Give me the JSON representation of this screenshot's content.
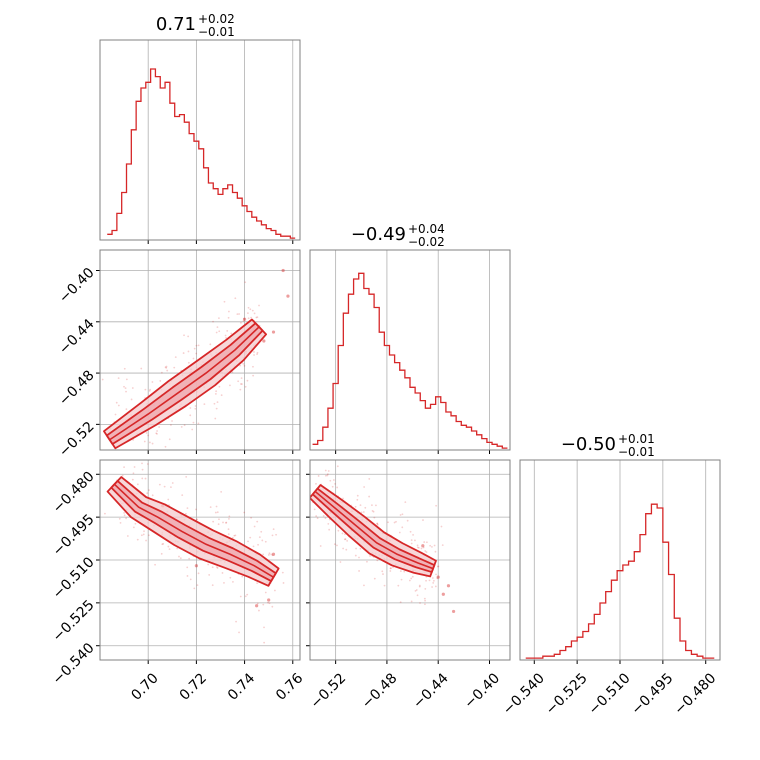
{
  "chart_data": {
    "type": "corner",
    "color": "#d62728",
    "fill_color": "#f4c9cc",
    "grid": true,
    "parameters": [
      {
        "title": {
          "median": "0.71",
          "plus": "+0.02",
          "minus": "−0.01"
        },
        "range": [
          0.68,
          0.763
        ],
        "ticks": [
          0.7,
          0.72,
          0.74,
          0.76
        ],
        "tick_labels": [
          "0.70",
          "0.72",
          "0.74",
          "0.76"
        ],
        "hist_x": [
          0.684,
          0.686,
          0.688,
          0.69,
          0.692,
          0.694,
          0.696,
          0.698,
          0.7,
          0.702,
          0.704,
          0.706,
          0.708,
          0.71,
          0.712,
          0.714,
          0.716,
          0.718,
          0.72,
          0.722,
          0.724,
          0.726,
          0.728,
          0.73,
          0.732,
          0.734,
          0.736,
          0.738,
          0.74,
          0.742,
          0.744,
          0.746,
          0.748,
          0.75,
          0.752,
          0.754,
          0.756,
          0.758,
          0.76
        ],
        "hist_y": [
          0.03,
          0.05,
          0.14,
          0.25,
          0.4,
          0.58,
          0.73,
          0.8,
          0.83,
          0.9,
          0.86,
          0.8,
          0.83,
          0.72,
          0.65,
          0.66,
          0.62,
          0.56,
          0.52,
          0.48,
          0.38,
          0.3,
          0.27,
          0.24,
          0.27,
          0.29,
          0.25,
          0.22,
          0.18,
          0.15,
          0.12,
          0.1,
          0.08,
          0.06,
          0.05,
          0.03,
          0.02,
          0.02,
          0.01
        ]
      },
      {
        "title": {
          "median": "−0.49",
          "plus": "+0.04",
          "minus": "−0.02"
        },
        "range": [
          -0.54,
          -0.384
        ],
        "ticks": [
          -0.52,
          -0.48,
          -0.44,
          -0.4
        ],
        "tick_labels": [
          "−0.52",
          "−0.48",
          "−0.44",
          "−0.40"
        ],
        "hist_x": [
          -0.536,
          -0.532,
          -0.528,
          -0.524,
          -0.52,
          -0.516,
          -0.512,
          -0.508,
          -0.504,
          -0.5,
          -0.496,
          -0.492,
          -0.488,
          -0.484,
          -0.48,
          -0.476,
          -0.472,
          -0.468,
          -0.464,
          -0.46,
          -0.456,
          -0.452,
          -0.448,
          -0.444,
          -0.44,
          -0.436,
          -0.432,
          -0.428,
          -0.424,
          -0.42,
          -0.416,
          -0.412,
          -0.408,
          -0.404,
          -0.4,
          -0.396,
          -0.392,
          -0.388
        ],
        "hist_y": [
          0.03,
          0.05,
          0.12,
          0.22,
          0.35,
          0.55,
          0.72,
          0.82,
          0.9,
          0.93,
          0.85,
          0.82,
          0.75,
          0.62,
          0.55,
          0.5,
          0.46,
          0.42,
          0.38,
          0.33,
          0.3,
          0.26,
          0.22,
          0.24,
          0.28,
          0.25,
          0.2,
          0.18,
          0.15,
          0.13,
          0.12,
          0.1,
          0.08,
          0.06,
          0.04,
          0.03,
          0.02,
          0.01
        ]
      },
      {
        "title": {
          "median": "−0.50",
          "plus": "+0.01",
          "minus": "−0.01"
        },
        "range": [
          -0.545,
          -0.475
        ],
        "ticks": [
          -0.54,
          -0.525,
          -0.51,
          -0.495,
          -0.48
        ],
        "tick_labels": [
          "−0.540",
          "−0.525",
          "−0.510",
          "−0.495",
          "−0.480"
        ],
        "hist_x": [
          -0.542,
          -0.54,
          -0.538,
          -0.536,
          -0.534,
          -0.532,
          -0.53,
          -0.528,
          -0.526,
          -0.524,
          -0.522,
          -0.52,
          -0.518,
          -0.516,
          -0.514,
          -0.512,
          -0.51,
          -0.508,
          -0.506,
          -0.504,
          -0.502,
          -0.5,
          -0.498,
          -0.496,
          -0.494,
          -0.492,
          -0.49,
          -0.488,
          -0.486,
          -0.484,
          -0.482,
          -0.48,
          -0.478
        ],
        "hist_y": [
          0.01,
          0.01,
          0.01,
          0.02,
          0.02,
          0.03,
          0.05,
          0.07,
          0.1,
          0.12,
          0.15,
          0.19,
          0.24,
          0.3,
          0.36,
          0.42,
          0.47,
          0.5,
          0.52,
          0.57,
          0.66,
          0.77,
          0.82,
          0.8,
          0.62,
          0.45,
          0.22,
          0.1,
          0.05,
          0.03,
          0.02,
          0.01,
          0.01
        ]
      }
    ],
    "joint": [
      {
        "x_param": 0,
        "y_param": 1,
        "ridge_x": [
          0.684,
          0.7,
          0.712,
          0.724,
          0.736,
          0.746
        ],
        "ridge_y": [
          -0.532,
          -0.512,
          -0.496,
          -0.48,
          -0.462,
          -0.444
        ],
        "half_widths": [
          0.006,
          0.012
        ],
        "outliers": [
          [
            0.752,
            -0.448
          ],
          [
            0.756,
            -0.4
          ],
          [
            0.74,
            -0.438
          ],
          [
            0.748,
            -0.455
          ],
          [
            0.758,
            -0.42
          ]
        ]
      },
      {
        "x_param": 0,
        "y_param": 2,
        "ridge_x": [
          0.686,
          0.696,
          0.704,
          0.714,
          0.724,
          0.734,
          0.744,
          0.752
        ],
        "ridge_y": [
          -0.4835,
          -0.4915,
          -0.495,
          -0.5,
          -0.5045,
          -0.508,
          -0.512,
          -0.516
        ],
        "half_widths": [
          0.0025,
          0.0055
        ],
        "outliers": [
          [
            0.75,
            -0.524
          ],
          [
            0.745,
            -0.526
          ],
          [
            0.72,
            -0.512
          ],
          [
            0.752,
            -0.508
          ],
          [
            0.706,
            -0.491
          ]
        ]
      },
      {
        "x_param": 1,
        "y_param": 2,
        "ridge_x": [
          -0.536,
          -0.52,
          -0.504,
          -0.488,
          -0.472,
          -0.456,
          -0.444
        ],
        "ridge_y": [
          -0.486,
          -0.492,
          -0.498,
          -0.504,
          -0.508,
          -0.511,
          -0.513
        ],
        "half_widths": [
          0.002,
          0.0045
        ],
        "outliers": [
          [
            -0.436,
            -0.522
          ],
          [
            -0.432,
            -0.519
          ],
          [
            -0.44,
            -0.516
          ],
          [
            -0.452,
            -0.505
          ],
          [
            -0.428,
            -0.528
          ]
        ]
      }
    ]
  }
}
